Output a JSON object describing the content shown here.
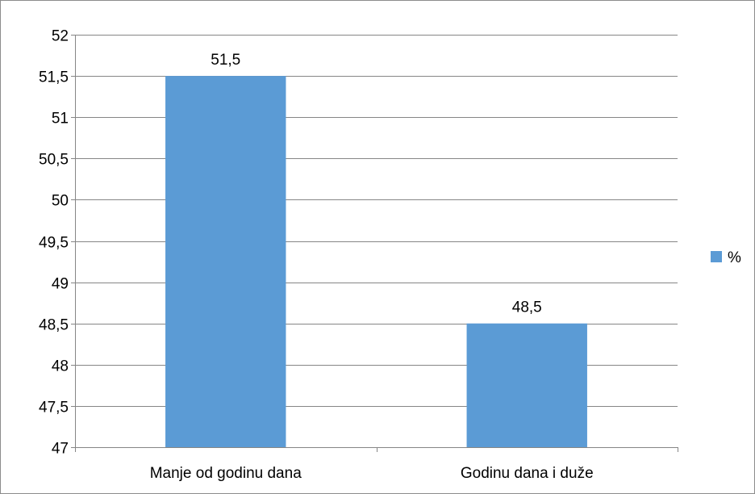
{
  "chart_data": {
    "type": "bar",
    "categories": [
      "Manje od godinu dana",
      "Godinu dana i duže"
    ],
    "series": [
      {
        "name": "%",
        "values": [
          51.5,
          48.5
        ],
        "labels": [
          "51,5",
          "48,5"
        ],
        "color": "#5b9bd5"
      }
    ],
    "ylim": [
      47,
      52
    ],
    "yticks": [
      47,
      47.5,
      48,
      48.5,
      49,
      49.5,
      50,
      50.5,
      51,
      51.5,
      52
    ],
    "ytick_labels": [
      "47",
      "47,5",
      "48",
      "48,5",
      "49",
      "49,5",
      "50",
      "50,5",
      "51",
      "51,5",
      "52"
    ],
    "grid": true,
    "legend_position": "right",
    "gridline_color": "#868686",
    "axis_color": "#868686"
  }
}
